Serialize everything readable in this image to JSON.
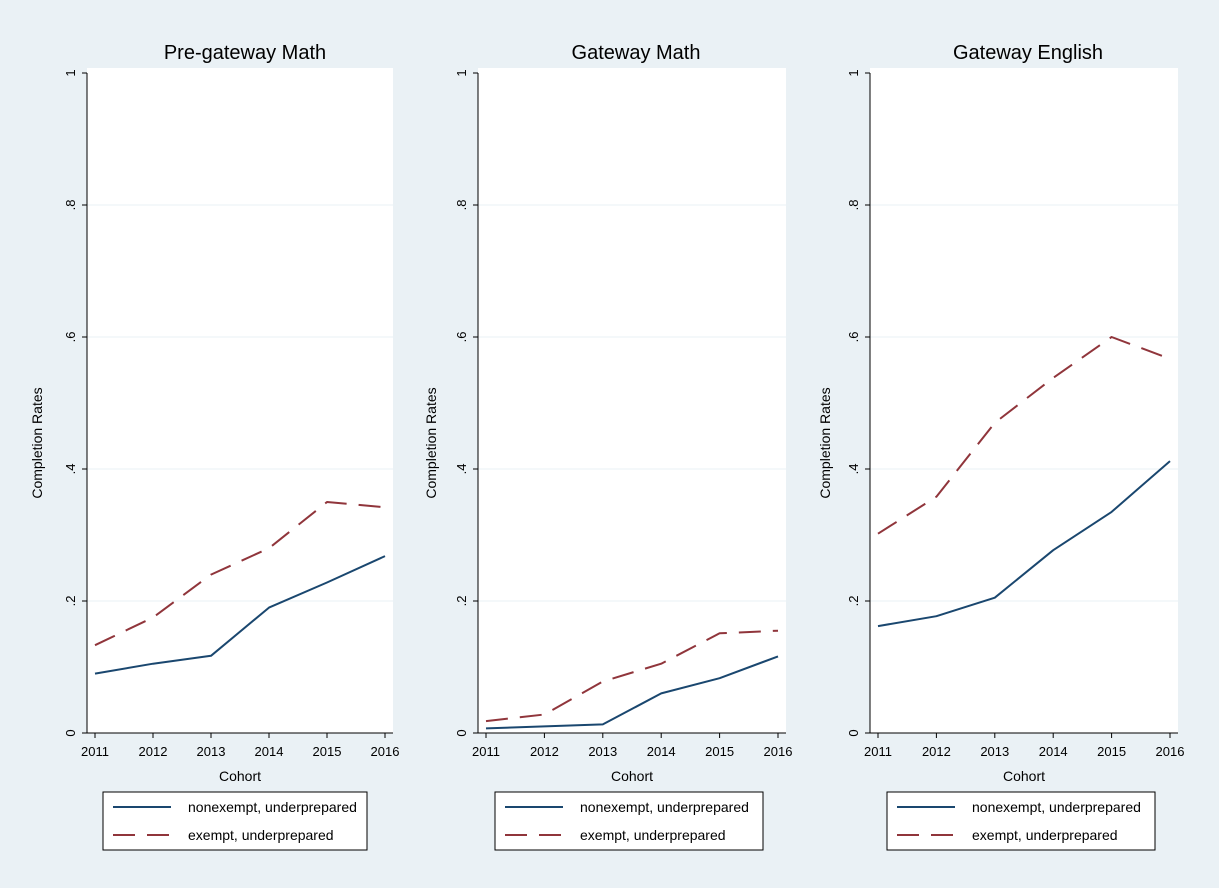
{
  "colors": {
    "background": "#eaf1f5",
    "plot_area": "#ffffff",
    "gridline": "#eaf1f5",
    "nonexempt": "#1a476f",
    "exempt": "#90353b"
  },
  "chart_data": [
    {
      "type": "line",
      "title": "Pre-gateway Math",
      "xlabel": "Cohort",
      "ylabel": "Completion Rates",
      "x": [
        2011,
        2012,
        2013,
        2014,
        2015,
        2016
      ],
      "x_tick_labels": [
        "2011",
        "2012",
        "2013",
        "2014",
        "2015",
        "2016"
      ],
      "y_ticks": [
        0,
        0.2,
        0.4,
        0.6,
        0.8,
        1
      ],
      "y_tick_labels": [
        "0",
        ".2",
        ".4",
        ".6",
        ".8",
        "1"
      ],
      "ylim": [
        0,
        1
      ],
      "grid": true,
      "legend_position": "bottom",
      "series": [
        {
          "name": "nonexempt, underprepared",
          "style": "solid",
          "values": [
            0.09,
            0.105,
            0.117,
            0.19,
            0.228,
            0.268
          ]
        },
        {
          "name": "exempt, underprepared",
          "style": "dashed",
          "values": [
            0.133,
            0.175,
            0.24,
            0.28,
            0.35,
            0.342
          ]
        }
      ]
    },
    {
      "type": "line",
      "title": "Gateway Math",
      "xlabel": "Cohort",
      "ylabel": "Completion Rates",
      "x": [
        2011,
        2012,
        2013,
        2014,
        2015,
        2016
      ],
      "x_tick_labels": [
        "2011",
        "2012",
        "2013",
        "2014",
        "2015",
        "2016"
      ],
      "y_ticks": [
        0,
        0.2,
        0.4,
        0.6,
        0.8,
        1
      ],
      "y_tick_labels": [
        "0",
        ".2",
        ".4",
        ".6",
        ".8",
        "1"
      ],
      "ylim": [
        0,
        1
      ],
      "grid": true,
      "legend_position": "bottom",
      "series": [
        {
          "name": "nonexempt, underprepared",
          "style": "solid",
          "values": [
            0.007,
            0.01,
            0.013,
            0.06,
            0.083,
            0.116
          ]
        },
        {
          "name": "exempt, underprepared",
          "style": "dashed",
          "values": [
            0.018,
            0.028,
            0.078,
            0.105,
            0.151,
            0.155
          ]
        }
      ]
    },
    {
      "type": "line",
      "title": "Gateway English",
      "xlabel": "Cohort",
      "ylabel": "Completion Rates",
      "x": [
        2011,
        2012,
        2013,
        2014,
        2015,
        2016
      ],
      "x_tick_labels": [
        "2011",
        "2012",
        "2013",
        "2014",
        "2015",
        "2016"
      ],
      "y_ticks": [
        0,
        0.2,
        0.4,
        0.6,
        0.8,
        1
      ],
      "y_tick_labels": [
        "0",
        ".2",
        ".4",
        ".6",
        ".8",
        "1"
      ],
      "ylim": [
        0,
        1
      ],
      "grid": true,
      "legend_position": "bottom",
      "series": [
        {
          "name": "nonexempt, underprepared",
          "style": "solid",
          "values": [
            0.162,
            0.177,
            0.205,
            0.277,
            0.335,
            0.412
          ]
        },
        {
          "name": "exempt, underprepared",
          "style": "dashed",
          "values": [
            0.302,
            0.358,
            0.47,
            0.538,
            0.6,
            0.567
          ]
        }
      ]
    }
  ]
}
